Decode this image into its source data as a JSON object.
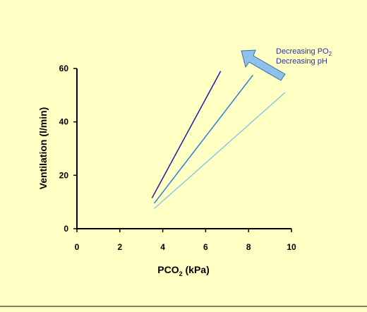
{
  "chart_data": {
    "type": "line",
    "title": "",
    "xlabel": {
      "main": "PCO",
      "sub": "2",
      "tail": " (kPa)"
    },
    "ylabel": "Ventilation (l/min)",
    "xlim": [
      0,
      10
    ],
    "ylim": [
      0,
      60
    ],
    "x_ticks": [
      "0",
      "2",
      "4",
      "6",
      "8",
      "10"
    ],
    "y_ticks": [
      "0",
      "20",
      "40",
      "60"
    ],
    "grid": false,
    "legend": "none",
    "series": [
      {
        "color": "#1a1ab8",
        "x": [
          3.5,
          6.7
        ],
        "y": [
          11.5,
          59
        ]
      },
      {
        "color": "#2a7fe6",
        "x": [
          3.6,
          8.2
        ],
        "y": [
          9.5,
          57.5
        ]
      },
      {
        "color": "#8fc4f2",
        "x": [
          3.6,
          9.7
        ],
        "y": [
          7.5,
          51
        ]
      }
    ],
    "annotation": {
      "line1": {
        "main": "Decreasing PO",
        "sub": "2"
      },
      "line2": "Decreasing pH"
    },
    "arrow_color": "#8ec0ea",
    "bottom_rule_color": "#000000"
  }
}
